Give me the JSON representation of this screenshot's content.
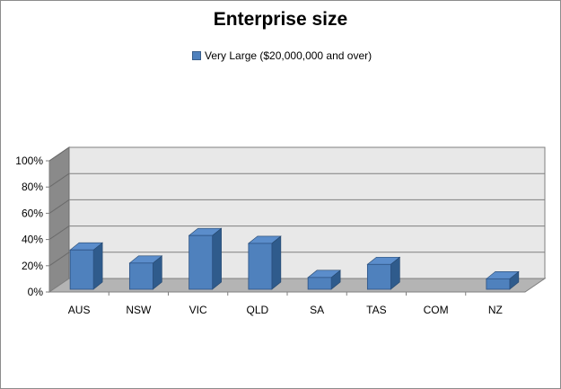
{
  "chart_data": {
    "type": "bar",
    "title": "Enterprise size",
    "categories": [
      "AUS",
      "NSW",
      "VIC",
      "QLD",
      "SA",
      "TAS",
      "COM",
      "NZ"
    ],
    "series": [
      {
        "name": "Very Large ($20,000,000 and over)",
        "values": [
          30,
          20,
          41,
          35,
          9,
          19,
          0,
          8
        ]
      }
    ],
    "ylim": [
      0,
      100
    ],
    "yticks": [
      "0%",
      "20%",
      "40%",
      "60%",
      "80%",
      "100%"
    ],
    "y_tick_values": [
      0,
      20,
      40,
      60,
      80,
      100
    ],
    "grid": true,
    "legend_position": "top",
    "colors": {
      "bar_front": "#4f81bd",
      "bar_top": "#5b8dcb",
      "bar_side": "#2f5b8c",
      "back_wall": "#e8e8e8",
      "side_wall": "#8a8a8a",
      "floor": "#b4b4b4"
    }
  }
}
